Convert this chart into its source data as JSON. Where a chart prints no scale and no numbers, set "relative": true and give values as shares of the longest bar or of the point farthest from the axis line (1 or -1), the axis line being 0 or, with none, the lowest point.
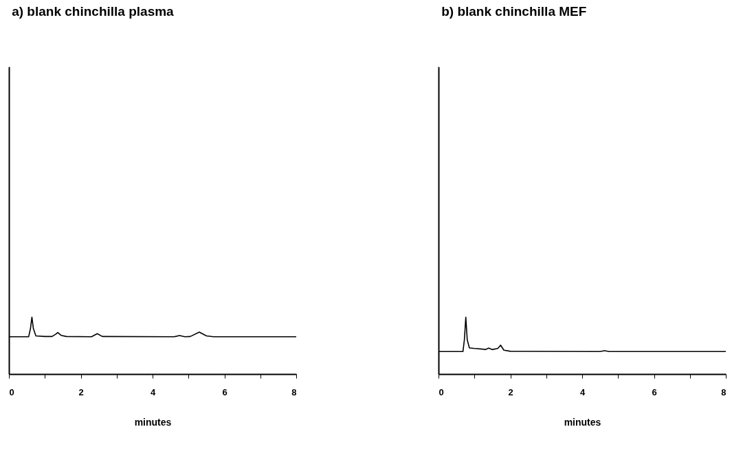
{
  "chart_data": [
    {
      "type": "line",
      "title": "a) blank chinchilla plasma",
      "xlabel": "minutes",
      "relative": true,
      "xlim": [
        0,
        8
      ],
      "xticks": [
        0,
        {
          "value": 1,
          "label": null
        },
        2,
        {
          "value": 3,
          "label": null
        },
        4,
        {
          "value": 5,
          "label": null
        },
        6,
        {
          "value": 7,
          "label": null
        },
        8
      ],
      "series": [
        {
          "color": "#000000",
          "x": [
            0,
            0.55,
            0.6,
            0.64,
            0.68,
            0.75,
            1.0,
            1.2,
            1.3,
            1.36,
            1.45,
            1.6,
            2.3,
            2.46,
            2.6,
            4.6,
            4.75,
            4.9,
            5.05,
            5.3,
            5.5,
            5.7,
            8
          ],
          "values": [
            0.656,
            0.656,
            0.8,
            1.0,
            0.8,
            0.67,
            0.66,
            0.66,
            0.7,
            0.73,
            0.68,
            0.66,
            0.656,
            0.71,
            0.66,
            0.656,
            0.676,
            0.656,
            0.66,
            0.736,
            0.67,
            0.656,
            0.656
          ]
        }
      ]
    },
    {
      "type": "line",
      "title": "b) blank chinchilla MEF",
      "xlabel": "minutes",
      "relative": true,
      "xlim": [
        0,
        8
      ],
      "xticks": [
        0,
        {
          "value": 1,
          "label": null
        },
        2,
        {
          "value": 3,
          "label": null
        },
        4,
        {
          "value": 5,
          "label": null
        },
        6,
        {
          "value": 7,
          "label": null
        },
        8
      ],
      "series": [
        {
          "color": "#000000",
          "x": [
            0,
            0.68,
            0.72,
            0.76,
            0.8,
            0.86,
            1.0,
            1.2,
            1.3,
            1.4,
            1.5,
            1.65,
            1.73,
            1.82,
            2.0,
            4.5,
            4.62,
            4.75,
            8
          ],
          "values": [
            0.395,
            0.395,
            0.6,
            1.0,
            0.6,
            0.46,
            0.45,
            0.44,
            0.43,
            0.456,
            0.43,
            0.45,
            0.508,
            0.42,
            0.4,
            0.395,
            0.411,
            0.395,
            0.395
          ]
        }
      ]
    }
  ]
}
